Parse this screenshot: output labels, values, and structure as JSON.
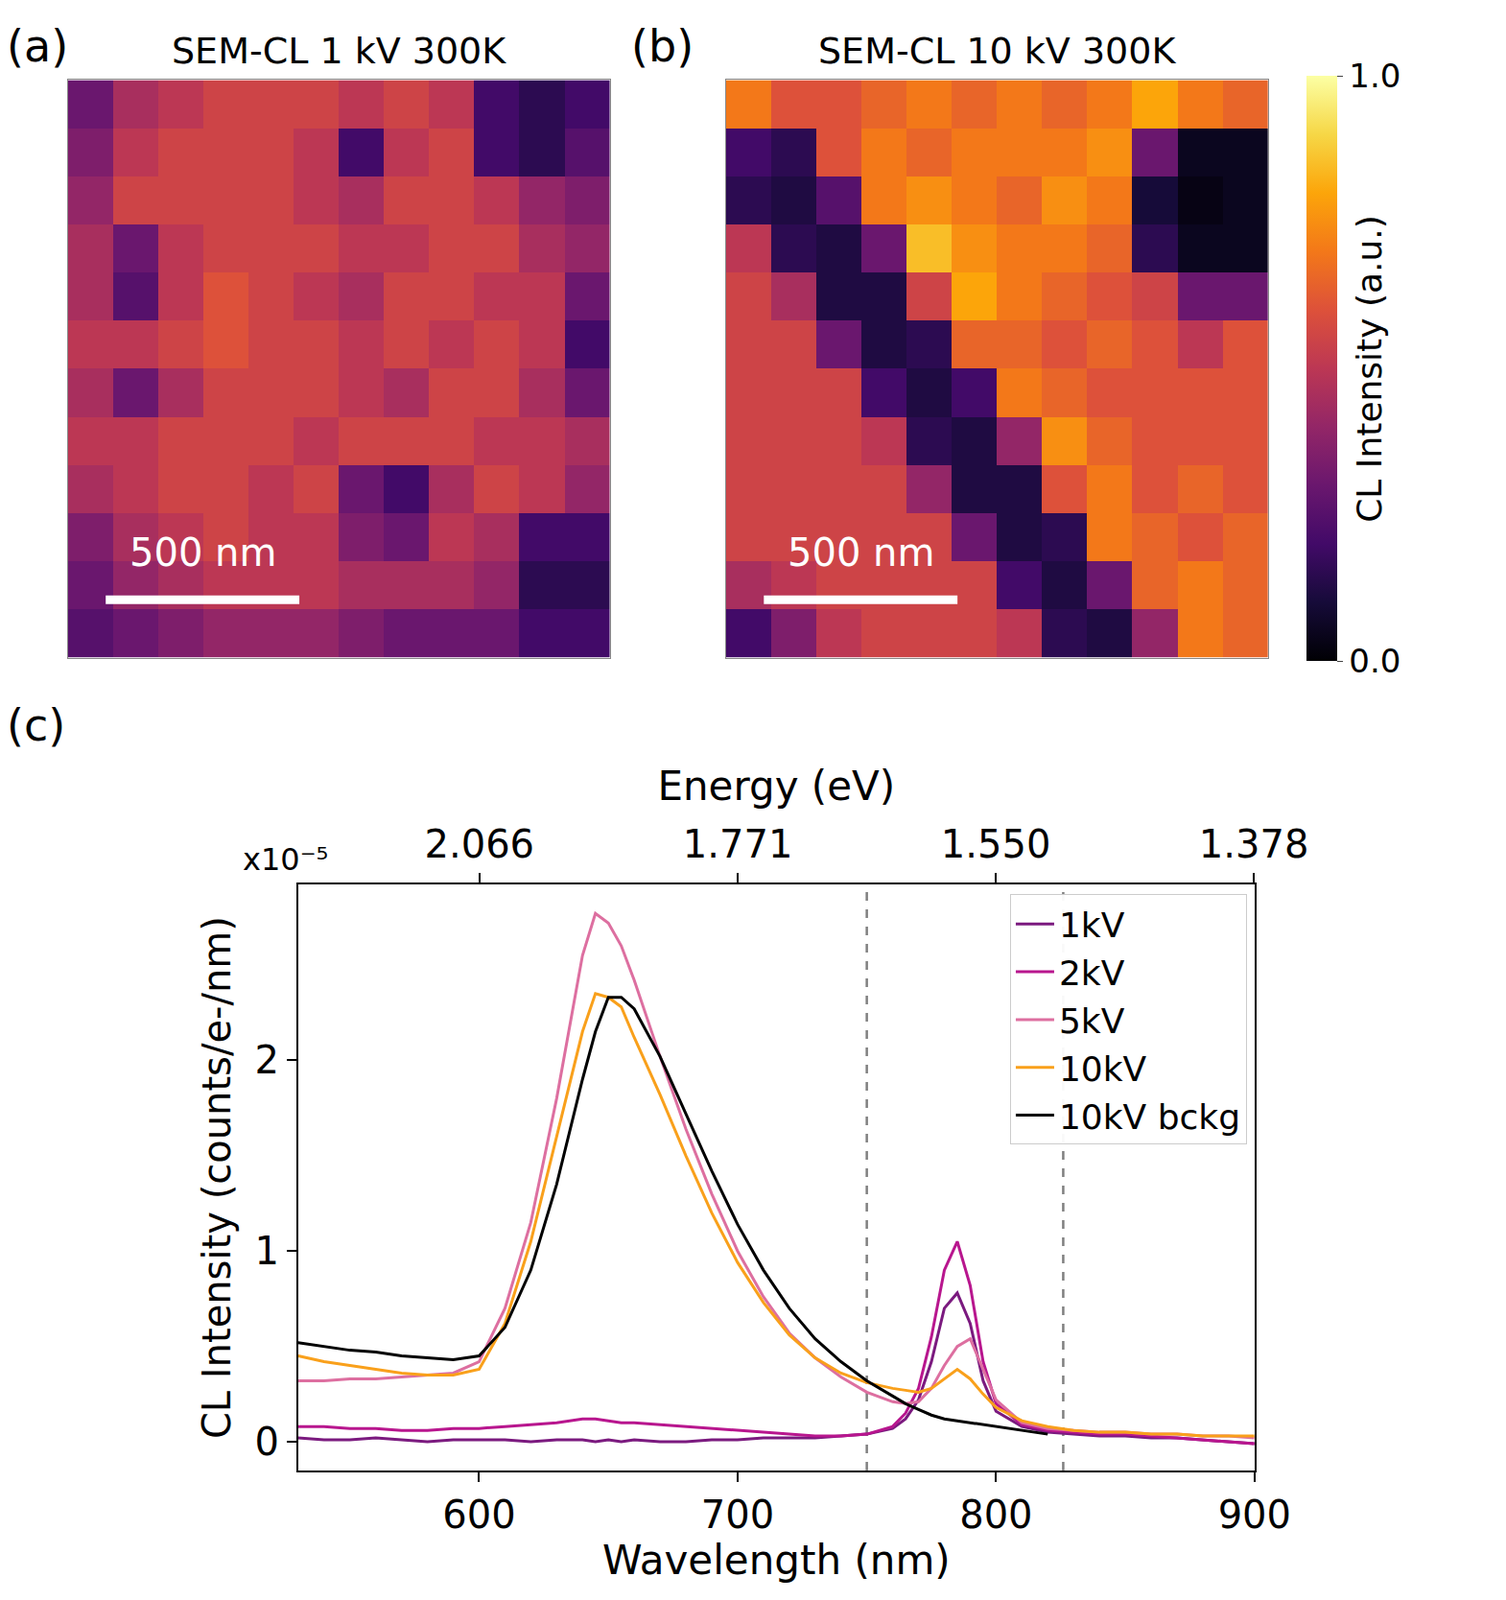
{
  "chart_data": [
    {
      "type": "heatmap",
      "panel": "(a)",
      "title": "SEM-CL 1 kV 300K",
      "xlim": [
        0,
        1400
      ],
      "ylim": [
        1400,
        0
      ],
      "tick_labels": false,
      "scale_bar": {
        "length": 500,
        "label": "500 nm"
      },
      "z": [
        [
          0.3,
          0.45,
          0.5,
          0.55,
          0.55,
          0.55,
          0.5,
          0.55,
          0.5,
          0.2,
          0.15,
          0.2
        ],
        [
          0.35,
          0.5,
          0.55,
          0.55,
          0.55,
          0.5,
          0.2,
          0.5,
          0.55,
          0.2,
          0.15,
          0.25
        ],
        [
          0.4,
          0.55,
          0.55,
          0.55,
          0.55,
          0.5,
          0.45,
          0.55,
          0.55,
          0.5,
          0.4,
          0.35
        ],
        [
          0.45,
          0.3,
          0.5,
          0.55,
          0.55,
          0.55,
          0.5,
          0.5,
          0.55,
          0.55,
          0.45,
          0.4
        ],
        [
          0.45,
          0.25,
          0.5,
          0.6,
          0.55,
          0.5,
          0.45,
          0.55,
          0.55,
          0.5,
          0.5,
          0.3
        ],
        [
          0.5,
          0.5,
          0.55,
          0.6,
          0.55,
          0.55,
          0.5,
          0.55,
          0.5,
          0.55,
          0.5,
          0.2
        ],
        [
          0.45,
          0.3,
          0.45,
          0.55,
          0.55,
          0.55,
          0.5,
          0.45,
          0.55,
          0.55,
          0.45,
          0.3
        ],
        [
          0.5,
          0.5,
          0.55,
          0.55,
          0.55,
          0.5,
          0.55,
          0.55,
          0.55,
          0.5,
          0.5,
          0.45
        ],
        [
          0.45,
          0.5,
          0.55,
          0.55,
          0.5,
          0.55,
          0.3,
          0.2,
          0.45,
          0.55,
          0.5,
          0.4
        ],
        [
          0.35,
          0.45,
          0.5,
          0.55,
          0.5,
          0.5,
          0.35,
          0.3,
          0.5,
          0.45,
          0.2,
          0.2
        ],
        [
          0.3,
          0.4,
          0.45,
          0.5,
          0.5,
          0.5,
          0.45,
          0.45,
          0.45,
          0.4,
          0.15,
          0.15
        ],
        [
          0.25,
          0.3,
          0.35,
          0.4,
          0.4,
          0.4,
          0.35,
          0.3,
          0.3,
          0.3,
          0.2,
          0.2
        ]
      ]
    },
    {
      "type": "heatmap",
      "panel": "(b)",
      "title": "SEM-CL 10 kV 300K",
      "xlim": [
        0,
        1400
      ],
      "ylim": [
        1400,
        0
      ],
      "tick_labels": false,
      "scale_bar": {
        "length": 500,
        "label": "500 nm"
      },
      "colorbar": {
        "title": "CL Intensity (a.u.)",
        "range": [
          0,
          1
        ],
        "ticks": [
          {
            "value": 0,
            "label": "0.0"
          },
          {
            "value": 1,
            "label": "1.0"
          }
        ]
      },
      "z": [
        [
          0.7,
          0.6,
          0.6,
          0.65,
          0.7,
          0.65,
          0.7,
          0.65,
          0.7,
          0.8,
          0.7,
          0.65
        ],
        [
          0.2,
          0.15,
          0.6,
          0.7,
          0.65,
          0.7,
          0.7,
          0.7,
          0.75,
          0.3,
          0.05,
          0.05
        ],
        [
          0.15,
          0.12,
          0.25,
          0.7,
          0.75,
          0.7,
          0.65,
          0.75,
          0.7,
          0.1,
          0.03,
          0.05
        ],
        [
          0.5,
          0.15,
          0.12,
          0.3,
          0.85,
          0.75,
          0.7,
          0.7,
          0.65,
          0.15,
          0.05,
          0.05
        ],
        [
          0.55,
          0.45,
          0.12,
          0.12,
          0.55,
          0.8,
          0.7,
          0.65,
          0.6,
          0.55,
          0.3,
          0.3
        ],
        [
          0.55,
          0.55,
          0.3,
          0.12,
          0.15,
          0.65,
          0.65,
          0.6,
          0.65,
          0.6,
          0.5,
          0.6
        ],
        [
          0.55,
          0.55,
          0.55,
          0.2,
          0.12,
          0.2,
          0.7,
          0.65,
          0.6,
          0.6,
          0.6,
          0.6
        ],
        [
          0.55,
          0.55,
          0.55,
          0.5,
          0.15,
          0.12,
          0.4,
          0.75,
          0.65,
          0.6,
          0.6,
          0.6
        ],
        [
          0.55,
          0.55,
          0.55,
          0.55,
          0.4,
          0.12,
          0.12,
          0.6,
          0.7,
          0.6,
          0.65,
          0.6
        ],
        [
          0.55,
          0.55,
          0.55,
          0.55,
          0.55,
          0.3,
          0.12,
          0.15,
          0.7,
          0.65,
          0.6,
          0.65
        ],
        [
          0.45,
          0.5,
          0.55,
          0.55,
          0.55,
          0.55,
          0.2,
          0.12,
          0.3,
          0.65,
          0.7,
          0.65
        ],
        [
          0.2,
          0.35,
          0.5,
          0.55,
          0.55,
          0.55,
          0.5,
          0.15,
          0.12,
          0.4,
          0.7,
          0.65
        ]
      ]
    },
    {
      "type": "line",
      "panel": "(c)",
      "xlabel": "Wavelength (nm)",
      "x2label": "Energy (eV)",
      "ylabel": "CL Intensity (counts/e-/nm)",
      "annotations": [
        "x10⁻⁵"
      ],
      "xlim": [
        530,
        900
      ],
      "xticks": [
        600,
        700,
        800,
        900
      ],
      "x2lim": [
        2.3393,
        1.3776
      ],
      "x2ticks": [
        2.066,
        1.771,
        {
          "value": 1.55,
          "label": "1.550"
        },
        1.378
      ],
      "ylim": [
        -0.15,
        2.92
      ],
      "yticks": [
        0,
        1,
        2
      ],
      "grid": false,
      "legend": "upper right",
      "vlines": {
        "x": [
          750,
          826
        ],
        "line_style": "dashed",
        "color": "#808080"
      },
      "x": [
        530,
        540,
        550,
        560,
        570,
        580,
        590,
        600,
        610,
        620,
        630,
        640,
        645,
        650,
        655,
        660,
        670,
        680,
        690,
        700,
        710,
        720,
        730,
        740,
        750,
        760,
        765,
        770,
        775,
        780,
        785,
        790,
        795,
        800,
        810,
        820,
        830,
        840,
        850,
        860,
        870,
        880,
        890,
        900
      ],
      "series": [
        {
          "name": "1kV",
          "color": "#7b1a7f",
          "values": [
            0.02,
            0.01,
            0.01,
            0.02,
            0.01,
            0.0,
            0.01,
            0.01,
            0.01,
            0.0,
            0.01,
            0.01,
            0.0,
            0.01,
            0.0,
            0.01,
            0.0,
            0.0,
            0.01,
            0.01,
            0.02,
            0.02,
            0.02,
            0.03,
            0.04,
            0.07,
            0.12,
            0.22,
            0.42,
            0.7,
            0.78,
            0.62,
            0.32,
            0.16,
            0.08,
            0.05,
            0.04,
            0.03,
            0.03,
            0.02,
            0.02,
            0.01,
            0.0,
            -0.01
          ]
        },
        {
          "name": "2kV",
          "color": "#b8168e",
          "values": [
            0.08,
            0.08,
            0.07,
            0.07,
            0.06,
            0.06,
            0.07,
            0.07,
            0.08,
            0.09,
            0.1,
            0.12,
            0.12,
            0.11,
            0.1,
            0.1,
            0.09,
            0.08,
            0.07,
            0.06,
            0.05,
            0.04,
            0.03,
            0.03,
            0.04,
            0.08,
            0.15,
            0.28,
            0.55,
            0.9,
            1.05,
            0.82,
            0.42,
            0.2,
            0.09,
            0.06,
            0.05,
            0.04,
            0.04,
            0.03,
            0.02,
            0.01,
            0.0,
            -0.01
          ]
        },
        {
          "name": "5kV",
          "color": "#dd6fa0",
          "values": [
            0.32,
            0.32,
            0.33,
            0.33,
            0.34,
            0.35,
            0.36,
            0.42,
            0.7,
            1.15,
            1.8,
            2.55,
            2.77,
            2.72,
            2.6,
            2.42,
            2.02,
            1.64,
            1.3,
            1.0,
            0.76,
            0.57,
            0.44,
            0.34,
            0.26,
            0.21,
            0.2,
            0.21,
            0.28,
            0.4,
            0.5,
            0.54,
            0.38,
            0.22,
            0.1,
            0.07,
            0.06,
            0.05,
            0.05,
            0.04,
            0.04,
            0.03,
            0.03,
            0.02
          ]
        },
        {
          "name": "10kV",
          "color": "#f9a01b",
          "values": [
            0.45,
            0.42,
            0.4,
            0.38,
            0.36,
            0.35,
            0.35,
            0.38,
            0.62,
            1.05,
            1.6,
            2.15,
            2.35,
            2.33,
            2.28,
            2.12,
            1.82,
            1.5,
            1.2,
            0.94,
            0.73,
            0.56,
            0.44,
            0.36,
            0.31,
            0.28,
            0.27,
            0.26,
            0.28,
            0.33,
            0.38,
            0.33,
            0.25,
            0.18,
            0.11,
            0.08,
            0.06,
            0.05,
            0.05,
            0.04,
            0.04,
            0.03,
            0.03,
            0.03
          ]
        },
        {
          "name": "10kV bckg",
          "color": "#000000",
          "values": [
            0.52,
            0.5,
            0.48,
            0.47,
            0.45,
            0.44,
            0.43,
            0.45,
            0.6,
            0.9,
            1.35,
            1.9,
            2.15,
            2.33,
            2.33,
            2.27,
            2.02,
            1.72,
            1.42,
            1.14,
            0.9,
            0.7,
            0.54,
            0.42,
            0.32,
            0.24,
            0.2,
            0.17,
            0.14,
            0.12,
            0.11,
            0.1,
            0.09,
            0.08,
            0.06,
            0.04,
            null,
            null,
            null,
            null,
            null,
            null,
            null,
            null
          ]
        }
      ]
    }
  ]
}
